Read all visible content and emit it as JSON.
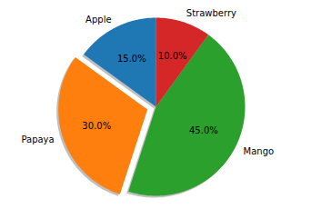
{
  "chart_data": {
    "type": "pie",
    "categories": [
      "Apple",
      "Papaya",
      "Mango",
      "Strawberry"
    ],
    "values": [
      15,
      30,
      45,
      10
    ],
    "value_labels": [
      "15.0%",
      "30.0%",
      "45.0%",
      "10.0%"
    ],
    "colors": [
      "#1f77b4",
      "#ff7f0e",
      "#2ca02c",
      "#d62728"
    ],
    "data_labels": true
  }
}
